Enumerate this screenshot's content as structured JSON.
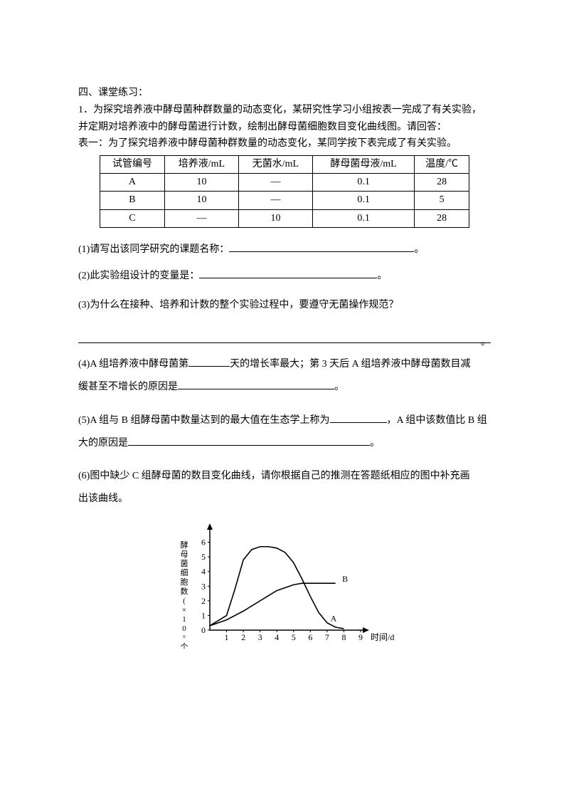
{
  "header": {
    "section_label": "四、课堂练习：",
    "q_number": "1．",
    "intro1": "为探究培养液中酵母菌种群数量的动态变化，某研究性学习小组按表一完成了有关实验，",
    "intro2": "并定期对培养液中的酵母菌进行计数，绘制出酵母菌细胞数目变化曲线图。请回答：",
    "table_caption": "表一：为了探究培养液中酵母菌种群数量的动态变化，某同学按下表完成了有关实验。"
  },
  "table": {
    "cols": [
      "试管编号",
      "培养液/mL",
      "无菌水/mL",
      "酵母菌母液/mL",
      "温度/℃"
    ],
    "rows": [
      [
        "A",
        "10",
        "—",
        "0.1",
        "28"
      ],
      [
        "B",
        "10",
        "—",
        "0.1",
        "5"
      ],
      [
        "C",
        "—",
        "10",
        "0.1",
        "28"
      ]
    ]
  },
  "questions": {
    "q1": "(1)请写出该同学研究的课题名称：",
    "q2": "(2)此实验组设计的变量是：",
    "q3": "(3)为什么在接种、培养和计数的整个实验过程中，要遵守无菌操作规范？",
    "q4a": "(4)A 组培养液中酵母菌第",
    "q4b": "天的增长率最大；第 3 天后 A 组培养液中酵母菌数目减",
    "q4c": "缓甚至不增长的原因是",
    "q5a": "(5)A 组与 B 组酵母菌中数量达到的最大值在生态学上称为",
    "q5b": "，A 组中该数值比 B",
    "q5c": "组大的原因是",
    "q6": "(6)图中缺少 C 组酵母菌的数目变化曲线，请你根据自己的推测在答题纸相应的图中补充画",
    "q6b": "出该曲线。",
    "period": "。"
  },
  "chart": {
    "type": "line",
    "ylabel": "酵母菌细胞数(×10⁶个/mL)",
    "xlabel": "时间/d",
    "xlim": [
      0,
      9
    ],
    "ylim": [
      0,
      7
    ],
    "yticks": [
      0,
      1,
      2,
      3,
      4,
      5,
      6
    ],
    "xticks": [
      1,
      2,
      3,
      4,
      5,
      6,
      7,
      8,
      9
    ],
    "series": [
      {
        "name": "A",
        "points": [
          [
            0,
            0.3
          ],
          [
            1,
            1.0
          ],
          [
            1.5,
            2.8
          ],
          [
            2,
            4.8
          ],
          [
            2.5,
            5.5
          ],
          [
            3,
            5.7
          ],
          [
            3.5,
            5.7
          ],
          [
            4,
            5.6
          ],
          [
            4.5,
            5.3
          ],
          [
            5,
            4.6
          ],
          [
            5.5,
            3.5
          ],
          [
            6,
            2.3
          ],
          [
            6.5,
            1.2
          ],
          [
            7,
            0.5
          ],
          [
            7.5,
            0.2
          ],
          [
            8,
            0.1
          ]
        ],
        "label_pos": [
          7.2,
          0.6
        ]
      },
      {
        "name": "B",
        "points": [
          [
            0,
            0.3
          ],
          [
            1,
            0.7
          ],
          [
            2,
            1.3
          ],
          [
            3,
            2.0
          ],
          [
            4,
            2.7
          ],
          [
            5,
            3.1
          ],
          [
            5.5,
            3.2
          ],
          [
            6,
            3.2
          ],
          [
            7,
            3.2
          ],
          [
            7.5,
            3.2
          ]
        ],
        "label_pos": [
          7.9,
          3.3
        ]
      }
    ],
    "axis_color": "#000000",
    "line_color": "#000000",
    "line_width": 1.6,
    "label_fontsize": 12,
    "tick_fontsize": 12,
    "background_color": "#ffffff"
  }
}
